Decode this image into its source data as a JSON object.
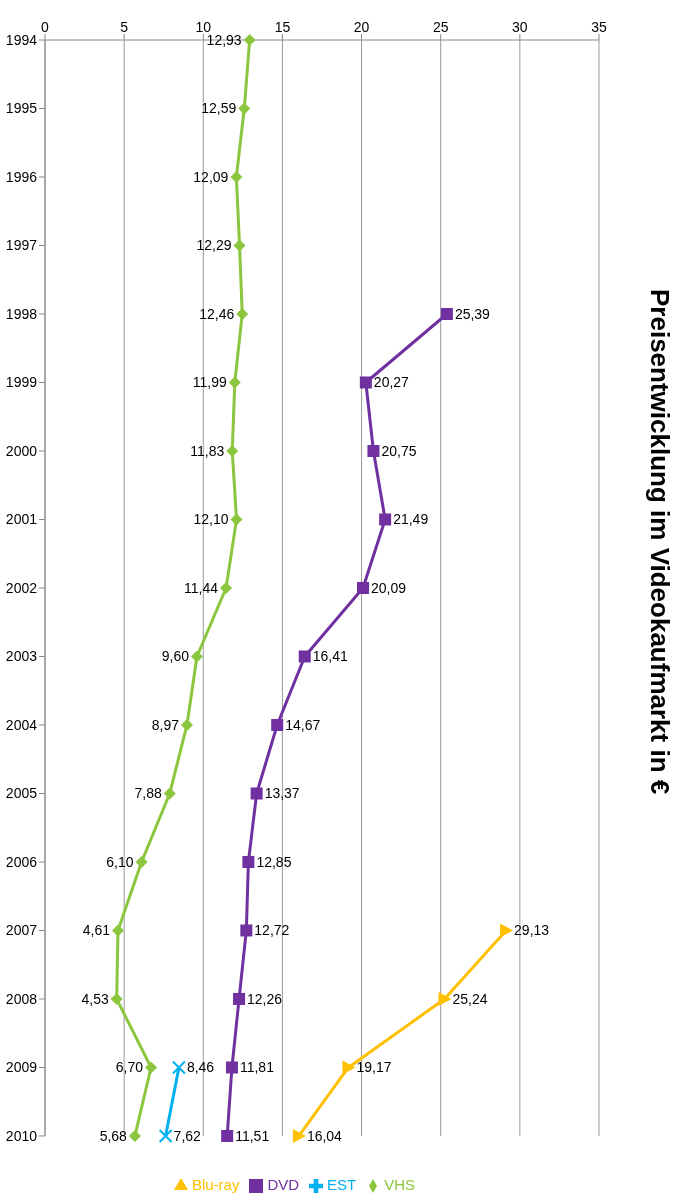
{
  "chart_data": {
    "type": "line",
    "title": "Preisentwicklung im Videokaufmarkt in €",
    "orientation": "horizontal",
    "categories": [
      "1994",
      "1995",
      "1996",
      "1997",
      "1998",
      "1999",
      "2000",
      "2001",
      "2002",
      "2003",
      "2004",
      "2005",
      "2006",
      "2007",
      "2008",
      "2009",
      "2010"
    ],
    "xlim": [
      0,
      35
    ],
    "xticks": [
      0,
      5,
      10,
      15,
      20,
      25,
      30,
      35
    ],
    "grid": "x",
    "legend": "bottom",
    "series": [
      {
        "name": "VHS",
        "color": "#8cc63e",
        "marker": "diamond",
        "values": [
          12.93,
          12.59,
          12.09,
          12.29,
          12.46,
          11.99,
          11.83,
          12.1,
          11.44,
          9.6,
          8.97,
          7.88,
          6.1,
          4.61,
          4.53,
          6.7,
          5.68
        ],
        "value_labels": [
          "12,93",
          "12,59",
          "12,09",
          "12,29",
          "12,46",
          "11,99",
          "11,83",
          "12,10",
          "11,44",
          "9,60",
          "8,97",
          "7,88",
          "6,10",
          "4,61",
          "4,53",
          "6,70",
          "5,68"
        ]
      },
      {
        "name": "DVD",
        "color": "#7030a0",
        "marker": "square",
        "values": [
          null,
          null,
          null,
          null,
          25.39,
          20.27,
          20.75,
          21.49,
          20.09,
          16.41,
          14.67,
          13.37,
          12.85,
          12.72,
          12.26,
          11.81,
          11.51
        ],
        "value_labels": [
          null,
          null,
          null,
          null,
          "25,39",
          "20,27",
          "20,75",
          "21,49",
          "20,09",
          "16,41",
          "14,67",
          "13,37",
          "12,85",
          "12,72",
          "12,26",
          "11,81",
          "11,51"
        ]
      },
      {
        "name": "Blu-ray",
        "color": "#ffc000",
        "marker": "triangle",
        "values": [
          null,
          null,
          null,
          null,
          null,
          null,
          null,
          null,
          null,
          null,
          null,
          null,
          null,
          29.13,
          25.24,
          19.17,
          16.04
        ],
        "value_labels": [
          null,
          null,
          null,
          null,
          null,
          null,
          null,
          null,
          null,
          null,
          null,
          null,
          null,
          "29,13",
          "25,24",
          "19,17",
          "16,04"
        ]
      },
      {
        "name": "EST",
        "color": "#00b0f0",
        "marker": "cross",
        "values": [
          null,
          null,
          null,
          null,
          null,
          null,
          null,
          null,
          null,
          null,
          null,
          null,
          null,
          null,
          null,
          8.46,
          7.62
        ],
        "value_labels": [
          null,
          null,
          null,
          null,
          null,
          null,
          null,
          null,
          null,
          null,
          null,
          null,
          null,
          null,
          null,
          "8,46",
          "7,62"
        ]
      }
    ]
  }
}
